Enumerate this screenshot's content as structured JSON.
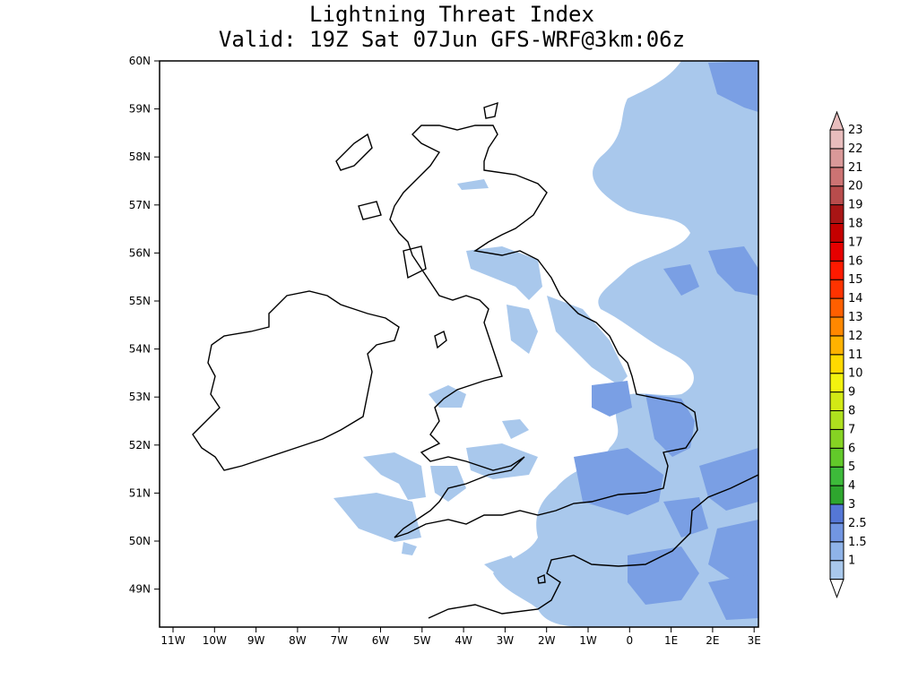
{
  "title": "Lightning Threat Index",
  "subtitle": "Valid: 19Z Sat 07Jun GFS-WRF@3km:06z",
  "map": {
    "lat_ticks": [
      "60N",
      "59N",
      "58N",
      "57N",
      "56N",
      "55N",
      "54N",
      "53N",
      "52N",
      "51N",
      "50N",
      "49N"
    ],
    "lon_ticks": [
      "11W",
      "10W",
      "9W",
      "8W",
      "7W",
      "6W",
      "5W",
      "4W",
      "3W",
      "2W",
      "1W",
      "0",
      "1E",
      "2E",
      "3E"
    ]
  },
  "colorbar": {
    "levels": [
      "1",
      "1.5",
      "2.5",
      "3",
      "4",
      "5",
      "6",
      "7",
      "8",
      "9",
      "10",
      "11",
      "12",
      "13",
      "14",
      "15",
      "16",
      "17",
      "18",
      "19",
      "20",
      "21",
      "22",
      "23"
    ],
    "colors": [
      "#a9c8ec",
      "#8fb3e8",
      "#7296e2",
      "#5577d6",
      "#2ea62e",
      "#3dba3a",
      "#62c92a",
      "#86d323",
      "#aee01e",
      "#d2e915",
      "#f2f20f",
      "#ffd900",
      "#ffb200",
      "#ff8800",
      "#ff5f00",
      "#ff3300",
      "#ff1a00",
      "#e60000",
      "#c40000",
      "#a81515",
      "#b84c4c",
      "#cc7373",
      "#d99999",
      "#e8bdbd"
    ],
    "units_note": ""
  },
  "accent": {
    "ocean": "#ffffff",
    "light_threat": "#a9c8ec",
    "mid_threat": "#7a9fe4",
    "coast": "#000000"
  }
}
